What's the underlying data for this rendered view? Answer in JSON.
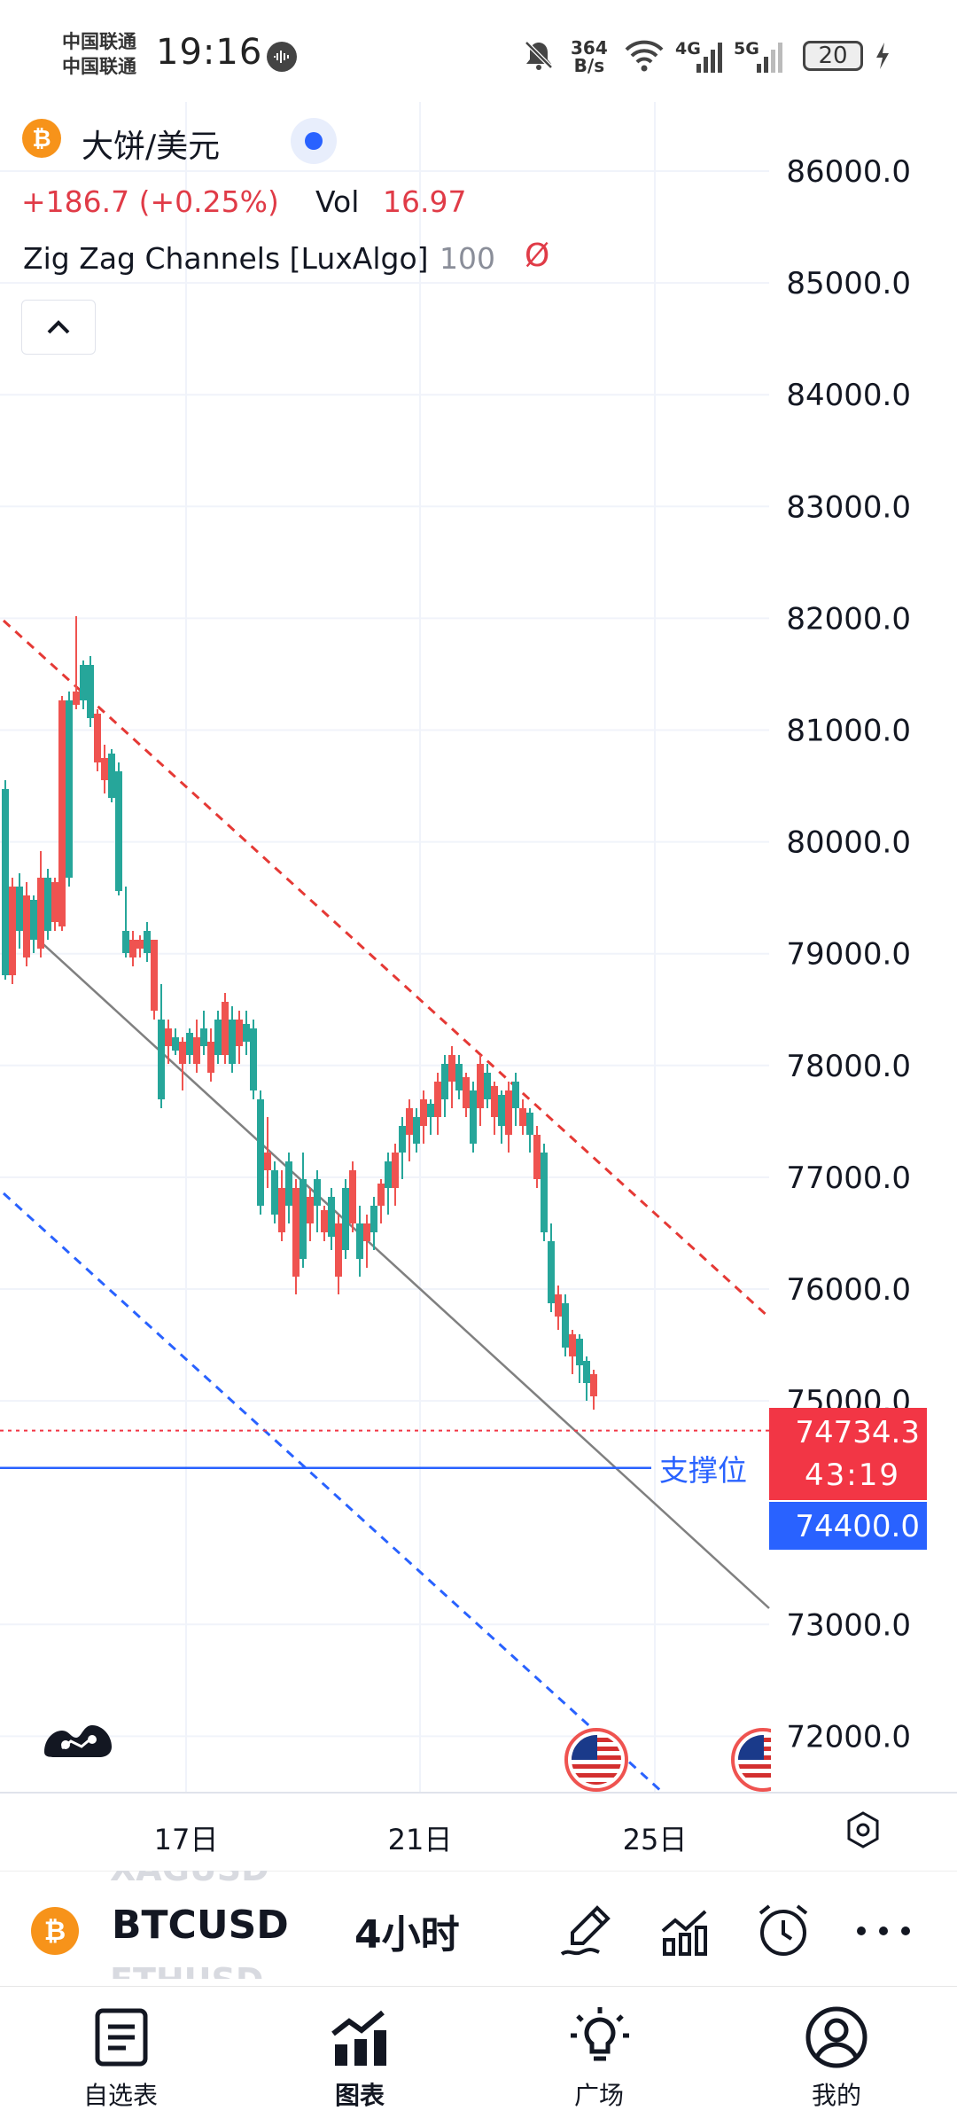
{
  "status_bar": {
    "carrier_1": "中国联通",
    "carrier_2": "中国联通",
    "time": "19:16",
    "net_speed_value": "364",
    "net_speed_unit": "B/s",
    "network_1": "4G",
    "network_2": "5G",
    "battery": "20"
  },
  "header": {
    "symbol_title": "大饼/美元",
    "change": "+186.7 (+0.25%)",
    "vol_label": "Vol",
    "vol_value": "16.97",
    "indicator_name": "Zig Zag Channels [LuxAlgo]",
    "indicator_length": "100",
    "indicator_hidden_mark": "Ø"
  },
  "price_axis": {
    "ticks": [
      "86000.0",
      "85000.0",
      "84000.0",
      "83000.0",
      "82000.0",
      "81000.0",
      "80000.0",
      "79000.0",
      "78000.0",
      "77000.0",
      "76000.0",
      "75000.0",
      "73000.0",
      "72000.0"
    ],
    "current_price": "74734.3",
    "countdown": "43:19",
    "support_price": "74400.0",
    "support_label": "支撑位"
  },
  "time_axis": {
    "ticks": [
      "17日",
      "21日",
      "25日"
    ]
  },
  "colors": {
    "up": "#26a69a",
    "down": "#ef5350",
    "channel_upper": "#e53935",
    "channel_lower": "#2962ff",
    "accent_blue": "#2962ff",
    "price_red": "#f23645"
  },
  "toolbar": {
    "prev_symbol": "XAGUSD",
    "symbol": "BTCUSD",
    "next_symbol": "ETHUSD",
    "interval": "4小时"
  },
  "nav": {
    "watchlist": "自选表",
    "chart": "图表",
    "ideas": "广场",
    "me": "我的"
  }
}
